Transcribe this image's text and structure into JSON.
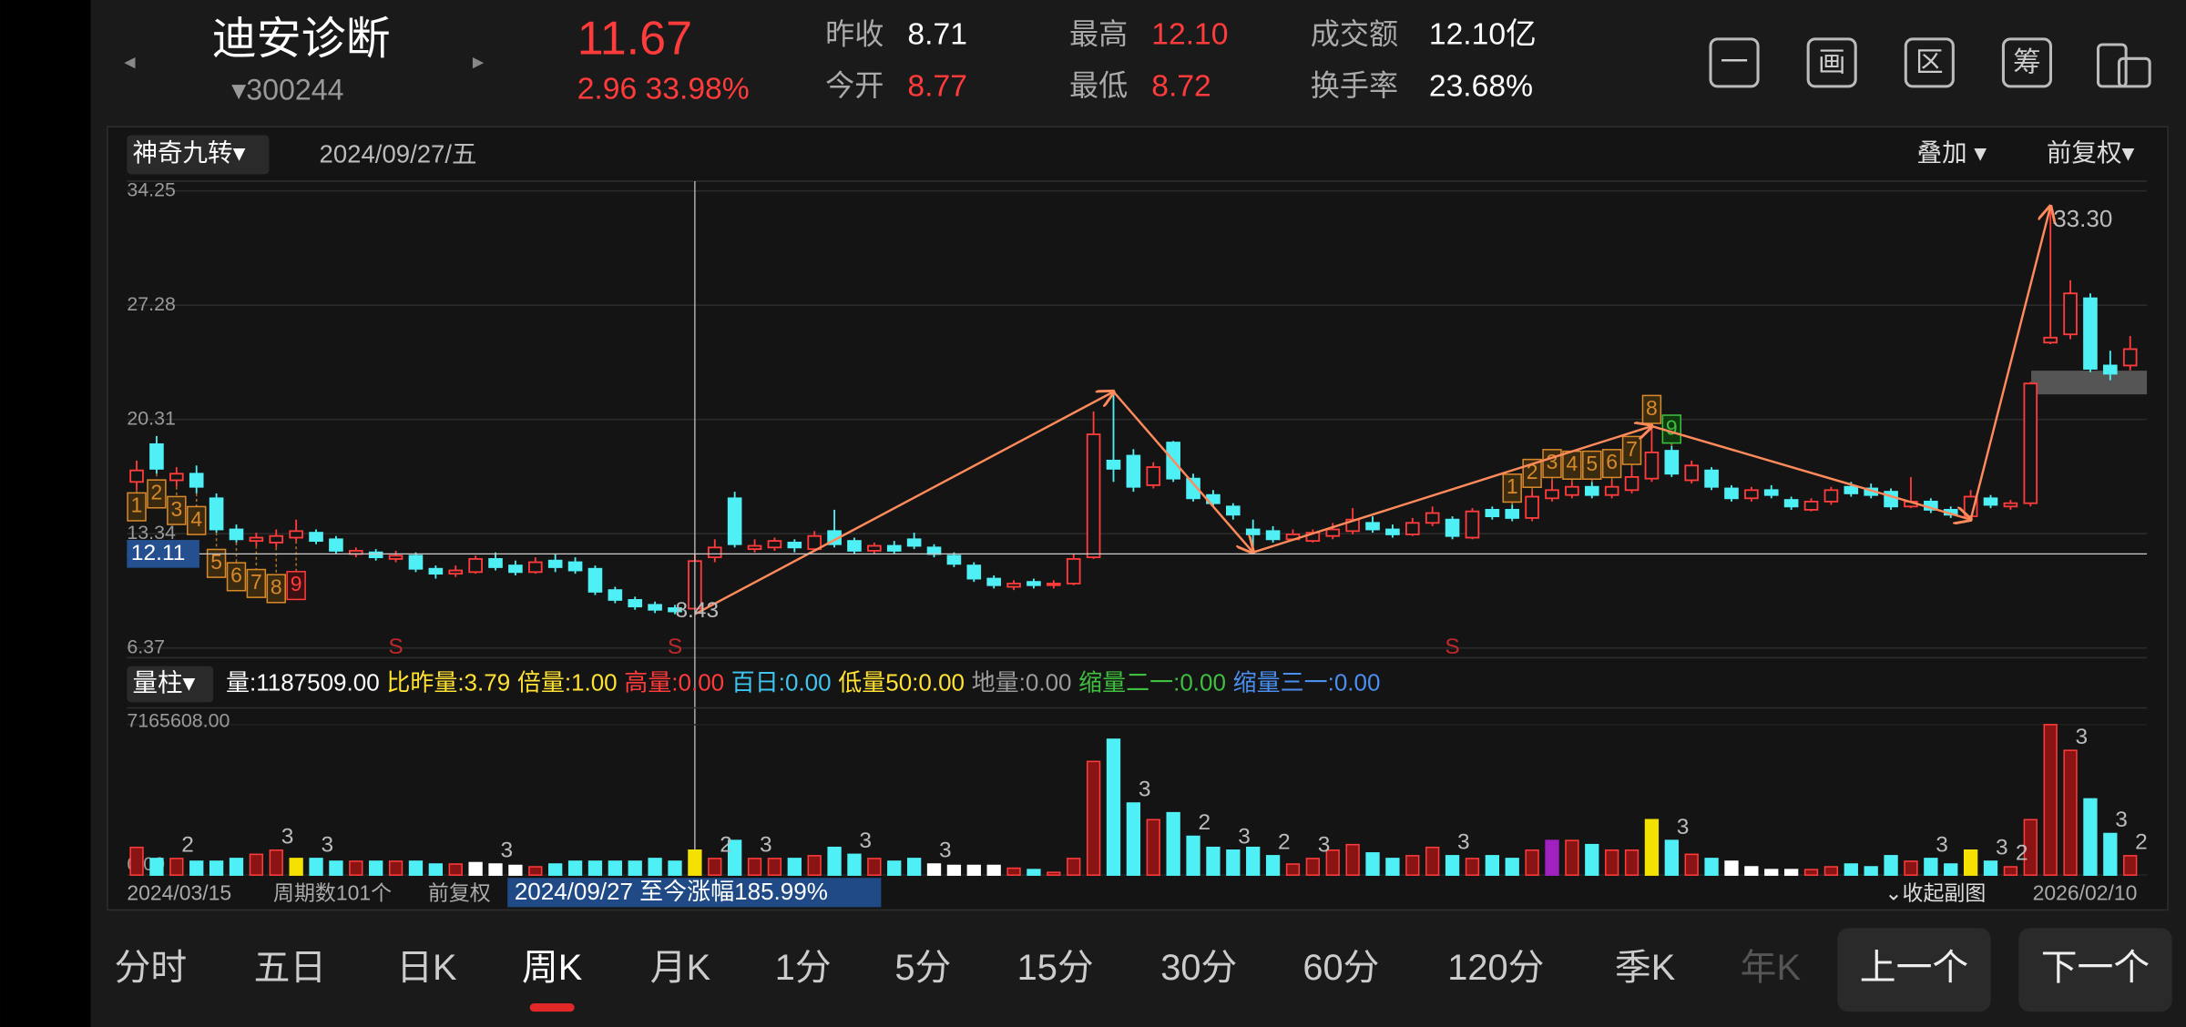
{
  "header": {
    "prev": "◂",
    "next": "▸",
    "name": "迪安诊断",
    "code": "▾300244",
    "price": "11.67",
    "change": "2.96 33.98%",
    "fields": [
      {
        "label": "昨收",
        "value": "8.71"
      },
      {
        "label": "今开",
        "value": "8.77"
      },
      {
        "label": "最高",
        "value": "12.10"
      },
      {
        "label": "最低",
        "value": "8.72"
      },
      {
        "label": "成交额",
        "value": "12.10亿"
      },
      {
        "label": "换手率",
        "value": "23.68%"
      }
    ],
    "icons": [
      "一",
      "画",
      "区",
      "筹"
    ]
  },
  "chart_header": {
    "indicator": "神奇九转▾",
    "date": "2024/09/27/五",
    "overlay": "叠加 ▾",
    "adjust": "前复权▾"
  },
  "chart_data": {
    "type": "candlestick",
    "ylim": [
      6.37,
      34.25
    ],
    "yticks": [
      34.25,
      27.28,
      20.31,
      13.34,
      6.37
    ],
    "crosshair": {
      "index": 28,
      "value": 12.11
    },
    "candles": [
      [
        16.5,
        17.2,
        17.8,
        16.0
      ],
      [
        18.8,
        17.3,
        19.3,
        17.0
      ],
      [
        16.6,
        17.0,
        17.4,
        16.2
      ],
      [
        17.0,
        16.2,
        17.5,
        15.8
      ],
      [
        15.5,
        13.6,
        15.8,
        13.4
      ],
      [
        13.6,
        13.0,
        13.9,
        12.8
      ],
      [
        12.9,
        13.1,
        13.4,
        12.6
      ],
      [
        12.8,
        13.2,
        13.6,
        12.5
      ],
      [
        13.1,
        13.5,
        14.2,
        12.9
      ],
      [
        13.4,
        12.9,
        13.6,
        12.7
      ],
      [
        13.0,
        12.3,
        13.2,
        12.1
      ],
      [
        12.1,
        12.3,
        12.5,
        11.9
      ],
      [
        12.2,
        11.9,
        12.4,
        11.7
      ],
      [
        11.8,
        12.0,
        12.3,
        11.6
      ],
      [
        12.0,
        11.2,
        12.2,
        11.0
      ],
      [
        11.2,
        10.9,
        11.4,
        10.6
      ],
      [
        10.9,
        11.1,
        11.4,
        10.7
      ],
      [
        11.0,
        11.8,
        12.0,
        10.9
      ],
      [
        11.8,
        11.3,
        12.2,
        11.1
      ],
      [
        11.4,
        11.0,
        11.7,
        10.8
      ],
      [
        11.0,
        11.6,
        11.9,
        10.9
      ],
      [
        11.7,
        11.3,
        12.1,
        11.0
      ],
      [
        11.6,
        11.1,
        11.9,
        10.9
      ],
      [
        11.2,
        9.8,
        11.4,
        9.6
      ],
      [
        9.9,
        9.3,
        10.1,
        9.1
      ],
      [
        9.3,
        8.9,
        9.5,
        8.7
      ],
      [
        9.0,
        8.7,
        9.2,
        8.5
      ],
      [
        8.8,
        8.6,
        9.0,
        8.43
      ],
      [
        8.77,
        11.67,
        12.1,
        8.72
      ],
      [
        11.9,
        12.5,
        13.0,
        11.6
      ],
      [
        15.5,
        12.7,
        15.9,
        12.5
      ],
      [
        12.4,
        12.6,
        13.0,
        12.2
      ],
      [
        12.5,
        12.9,
        13.1,
        12.3
      ],
      [
        12.8,
        12.5,
        13.0,
        12.2
      ],
      [
        12.4,
        13.2,
        13.5,
        12.3
      ],
      [
        13.5,
        12.7,
        14.8,
        12.5
      ],
      [
        12.9,
        12.3,
        13.1,
        12.1
      ],
      [
        12.3,
        12.6,
        12.8,
        12.1
      ],
      [
        12.6,
        12.3,
        12.9,
        12.1
      ],
      [
        13.0,
        12.6,
        13.4,
        12.4
      ],
      [
        12.5,
        12.1,
        12.7,
        11.9
      ],
      [
        12.0,
        11.5,
        12.2,
        11.3
      ],
      [
        11.4,
        10.6,
        11.6,
        10.4
      ],
      [
        10.6,
        10.2,
        10.8,
        10.0
      ],
      [
        10.1,
        10.3,
        10.5,
        9.9
      ],
      [
        10.4,
        10.2,
        10.6,
        10.0
      ],
      [
        10.2,
        10.3,
        10.5,
        10.0
      ],
      [
        10.3,
        11.8,
        12.1,
        10.2
      ],
      [
        11.9,
        19.4,
        20.8,
        11.8
      ],
      [
        17.8,
        17.3,
        22.0,
        16.5
      ],
      [
        18.1,
        16.2,
        18.5,
        15.9
      ],
      [
        16.3,
        17.4,
        17.7,
        16.1
      ],
      [
        18.9,
        16.7,
        19.0,
        16.5
      ],
      [
        16.7,
        15.5,
        17.0,
        15.3
      ],
      [
        15.7,
        15.2,
        16.0,
        15.0
      ],
      [
        15.0,
        14.5,
        15.2,
        14.2
      ],
      [
        13.6,
        13.3,
        14.2,
        12.2
      ],
      [
        13.5,
        13.0,
        13.8,
        12.8
      ],
      [
        13.0,
        13.3,
        13.6,
        12.9
      ],
      [
        12.9,
        13.4,
        13.6,
        12.8
      ],
      [
        13.2,
        13.6,
        14.0,
        13.0
      ],
      [
        13.5,
        14.2,
        14.9,
        13.3
      ],
      [
        14.0,
        13.6,
        14.4,
        13.4
      ],
      [
        13.6,
        13.3,
        13.9,
        13.1
      ],
      [
        13.3,
        14.0,
        14.3,
        13.2
      ],
      [
        14.0,
        14.6,
        15.0,
        13.8
      ],
      [
        14.2,
        13.2,
        14.4,
        13.0
      ],
      [
        13.1,
        14.7,
        14.9,
        13.0
      ],
      [
        14.8,
        14.4,
        15.0,
        14.2
      ],
      [
        14.8,
        14.3,
        15.1,
        14.1
      ],
      [
        14.3,
        15.6,
        16.0,
        14.1
      ],
      [
        15.5,
        16.0,
        16.6,
        15.3
      ],
      [
        15.7,
        16.2,
        16.5,
        15.5
      ],
      [
        16.2,
        15.7,
        16.5,
        15.5
      ],
      [
        15.7,
        16.2,
        16.6,
        15.5
      ],
      [
        16.0,
        16.8,
        17.4,
        15.8
      ],
      [
        16.7,
        18.3,
        19.9,
        16.5
      ],
      [
        18.4,
        17.0,
        18.7,
        16.8
      ],
      [
        16.6,
        17.5,
        17.8,
        16.4
      ],
      [
        17.2,
        16.2,
        17.4,
        16.0
      ],
      [
        16.1,
        15.5,
        16.3,
        15.3
      ],
      [
        15.5,
        16.0,
        16.2,
        15.3
      ],
      [
        16.0,
        15.7,
        16.3,
        15.5
      ],
      [
        15.4,
        15.0,
        15.6,
        14.8
      ],
      [
        14.8,
        15.3,
        15.5,
        14.7
      ],
      [
        15.3,
        16.0,
        16.2,
        15.1
      ],
      [
        16.2,
        15.8,
        16.5,
        15.6
      ],
      [
        16.1,
        15.7,
        16.4,
        15.5
      ],
      [
        15.9,
        15.0,
        16.1,
        14.8
      ],
      [
        15.0,
        15.3,
        16.8,
        14.9
      ],
      [
        15.3,
        14.8,
        15.5,
        14.6
      ],
      [
        14.8,
        14.5,
        15.0,
        14.3
      ],
      [
        14.4,
        15.6,
        16.0,
        14.2
      ],
      [
        15.5,
        15.1,
        15.7,
        14.9
      ],
      [
        15.0,
        15.2,
        15.4,
        14.8
      ],
      [
        15.2,
        22.5,
        22.6,
        15.0
      ],
      [
        25.0,
        25.3,
        33.3,
        24.9
      ],
      [
        25.5,
        28.0,
        28.8,
        25.2
      ],
      [
        27.7,
        23.4,
        28.0,
        23.2
      ],
      [
        23.6,
        23.1,
        24.5,
        22.7
      ],
      [
        23.6,
        24.6,
        25.4,
        23.3
      ]
    ],
    "zigzag": [
      [
        28,
        8.43
      ],
      [
        49,
        22.0
      ],
      [
        56,
        12.2
      ],
      [
        76,
        19.9
      ],
      [
        92,
        14.2
      ],
      [
        96,
        33.3
      ]
    ],
    "zigzag_color": "#ff8a5b",
    "low_label": "8.43",
    "high_label": "33.30",
    "nine_turn_low": [
      [
        0,
        "1"
      ],
      [
        1,
        "2"
      ],
      [
        2,
        "3"
      ],
      [
        3,
        "4"
      ],
      [
        4,
        "5"
      ],
      [
        5,
        "6"
      ],
      [
        6,
        "7"
      ],
      [
        7,
        "8"
      ],
      [
        8,
        "9"
      ]
    ],
    "nine_turn_high": [
      [
        69,
        "1"
      ],
      [
        70,
        "2"
      ],
      [
        71,
        "3"
      ],
      [
        72,
        "4"
      ],
      [
        73,
        "5"
      ],
      [
        74,
        "6"
      ],
      [
        75,
        "7"
      ],
      [
        76,
        "8"
      ],
      [
        77,
        "9"
      ]
    ],
    "s_label": "S",
    "s_marks": [
      13,
      27,
      66
    ],
    "up_color": "#ff3b3b",
    "down_color": "#4ff0f5"
  },
  "volume_header": {
    "selector": "量柱▾",
    "items": [
      {
        "text": "量:1187509.00",
        "color": "#ffffff"
      },
      {
        "text": "比昨量:3.79",
        "color": "#ffe234"
      },
      {
        "text": "倍量:1.00",
        "color": "#ffe234"
      },
      {
        "text": "高量:0.00",
        "color": "#ff3b3b"
      },
      {
        "text": "百日:0.00",
        "color": "#3ec6f0"
      },
      {
        "text": "低量50:0.00",
        "color": "#ffe234"
      },
      {
        "text": "地量:0.00",
        "color": "#9a9a9a"
      },
      {
        "text": "缩量二一:0.00",
        "color": "#3fbf3f"
      },
      {
        "text": "缩量三一:0.00",
        "color": "#4a8ff0"
      }
    ]
  },
  "volume_data": {
    "type": "bar",
    "vlim": [
      0,
      7165608
    ],
    "vticks": [
      {
        "value": 7165608,
        "label": "7165608.00"
      },
      {
        "value": 0,
        "label": "0.00"
      }
    ],
    "values": [
      1320000,
      792000,
      792000,
      660000,
      660000,
      792000,
      990000,
      1188000,
      792000,
      792000,
      660000,
      660000,
      660000,
      660000,
      660000,
      528000,
      528000,
      594000,
      528000,
      462000,
      396000,
      528000,
      660000,
      660000,
      660000,
      660000,
      792000,
      660000,
      1187509,
      792000,
      1650000,
      792000,
      792000,
      792000,
      924000,
      1320000,
      990000,
      792000,
      660000,
      792000,
      528000,
      462000,
      462000,
      462000,
      330000,
      264000,
      132000,
      792000,
      5412000,
      6468000,
      3432000,
      2640000,
      2970000,
      1848000,
      1320000,
      1188000,
      1320000,
      924000,
      528000,
      792000,
      1188000,
      1452000,
      1056000,
      792000,
      924000,
      1320000,
      924000,
      792000,
      924000,
      792000,
      1188000,
      1650000,
      1650000,
      1452000,
      1188000,
      1188000,
      2640000,
      1650000,
      990000,
      792000,
      660000,
      396000,
      264000,
      264000,
      264000,
      396000,
      528000,
      396000,
      924000,
      660000,
      792000,
      528000,
      1188000,
      660000,
      396000,
      2640000,
      7165608,
      5940000,
      3630000,
      1980000,
      924000
    ],
    "special_colors": {
      "8": "#f5e100",
      "17": "#ffffff",
      "18": "#ffffff",
      "19": "#ffffff",
      "28": "#f5e100",
      "40": "#ffffff",
      "41": "#ffffff",
      "42": "#ffffff",
      "43": "#ffffff",
      "71": "#a020c0",
      "76": "#f5e100",
      "80": "#ffffff",
      "81": "#ffffff",
      "82": "#ffffff",
      "83": "#ffffff",
      "92": "#f5e100"
    },
    "marks": [
      [
        2,
        "2"
      ],
      [
        7,
        "3"
      ],
      [
        9,
        "3"
      ],
      [
        18,
        "3"
      ],
      [
        29,
        "2"
      ],
      [
        31,
        "3"
      ],
      [
        36,
        "3"
      ],
      [
        40,
        "3"
      ],
      [
        50,
        "3"
      ],
      [
        53,
        "2"
      ],
      [
        55,
        "3"
      ],
      [
        57,
        "2"
      ],
      [
        59,
        "3"
      ],
      [
        66,
        "3"
      ],
      [
        77,
        "3"
      ],
      [
        90,
        "3"
      ],
      [
        93,
        "3"
      ],
      [
        94,
        "2"
      ],
      [
        97,
        "3"
      ],
      [
        99,
        "3"
      ],
      [
        100,
        "2"
      ]
    ]
  },
  "footer": {
    "start": "2024/03/15",
    "periods": "周期数101个",
    "adjust": "前复权",
    "gain": "2024/09/27 至今涨幅185.99%",
    "collapse": "⌄收起副图",
    "end": "2026/02/10"
  },
  "tabs": [
    "分时",
    "五日",
    "日K",
    "周K",
    "月K",
    "1分",
    "5分",
    "15分",
    "30分",
    "60分",
    "120分",
    "季K",
    "年K"
  ],
  "active_tab": 3,
  "buttons": [
    "上一个",
    "下一个"
  ]
}
